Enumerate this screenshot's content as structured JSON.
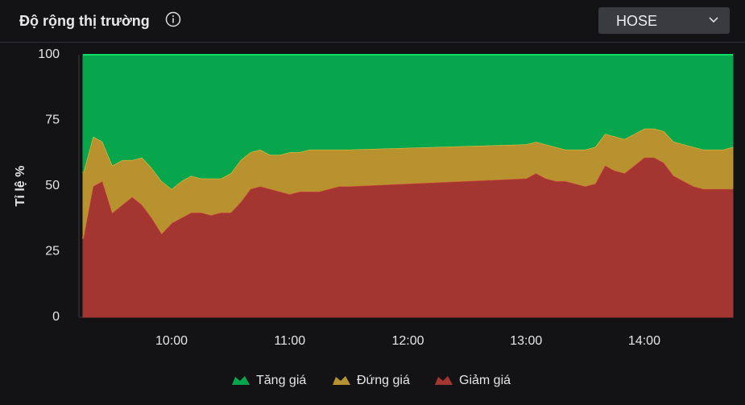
{
  "header": {
    "title": "Độ rộng thị trường",
    "exchange": "HOSE"
  },
  "chart_data": {
    "type": "stacked-area",
    "y_label": "Tỉ lệ %",
    "x": [
      "09:15",
      "09:20",
      "09:25",
      "09:30",
      "09:35",
      "09:40",
      "09:45",
      "09:50",
      "09:55",
      "10:00",
      "10:05",
      "10:10",
      "10:15",
      "10:20",
      "10:25",
      "10:30",
      "10:35",
      "10:40",
      "10:45",
      "10:50",
      "10:55",
      "11:00",
      "11:05",
      "11:10",
      "11:15",
      "11:20",
      "11:25",
      "11:30",
      "13:00",
      "13:05",
      "13:10",
      "13:15",
      "13:20",
      "13:25",
      "13:30",
      "13:35",
      "13:40",
      "13:45",
      "13:50",
      "13:55",
      "14:00",
      "14:05",
      "14:10",
      "14:15",
      "14:20",
      "14:25",
      "14:30",
      "14:35",
      "14:40",
      "14:45"
    ],
    "xlim": [
      "09:15",
      "14:45"
    ],
    "xticks": [
      "10:00",
      "11:00",
      "12:00",
      "13:00",
      "14:00"
    ],
    "ylim": [
      0,
      100
    ],
    "yticks": [
      0,
      25,
      50,
      75,
      100
    ],
    "series": [
      {
        "name": "Tăng giá",
        "color": "#07a64d",
        "values": [
          45,
          31,
          33,
          42,
          40,
          40,
          39,
          43,
          48,
          51,
          48,
          46,
          47,
          47,
          47,
          45,
          40,
          37,
          36,
          38,
          38,
          37,
          37,
          36,
          36,
          36,
          36,
          36,
          34,
          33,
          34,
          35,
          36,
          36,
          36,
          35,
          30,
          31,
          32,
          30,
          28,
          28,
          29,
          33,
          34,
          35,
          36,
          36,
          36,
          35
        ]
      },
      {
        "name": "Đứng giá",
        "color": "#b8922f",
        "values": [
          25,
          19,
          15,
          18,
          17,
          14,
          18,
          19,
          20,
          13,
          14,
          14,
          13,
          14,
          13,
          15,
          16,
          14,
          14,
          13,
          14,
          16,
          15,
          16,
          16,
          15,
          14,
          14,
          13,
          12,
          13,
          13,
          12,
          13,
          14,
          14,
          12,
          13,
          13,
          12,
          11,
          11,
          12,
          13,
          14,
          15,
          15,
          15,
          15,
          16
        ]
      },
      {
        "name": "Giảm giá",
        "color": "#a33630",
        "values": [
          30,
          50,
          52,
          40,
          43,
          46,
          43,
          38,
          32,
          36,
          38,
          40,
          40,
          39,
          40,
          40,
          44,
          49,
          50,
          49,
          48,
          47,
          48,
          48,
          48,
          49,
          50,
          50,
          53,
          55,
          53,
          52,
          52,
          51,
          50,
          51,
          58,
          56,
          55,
          58,
          61,
          61,
          59,
          54,
          52,
          50,
          49,
          49,
          49,
          49
        ]
      }
    ]
  }
}
